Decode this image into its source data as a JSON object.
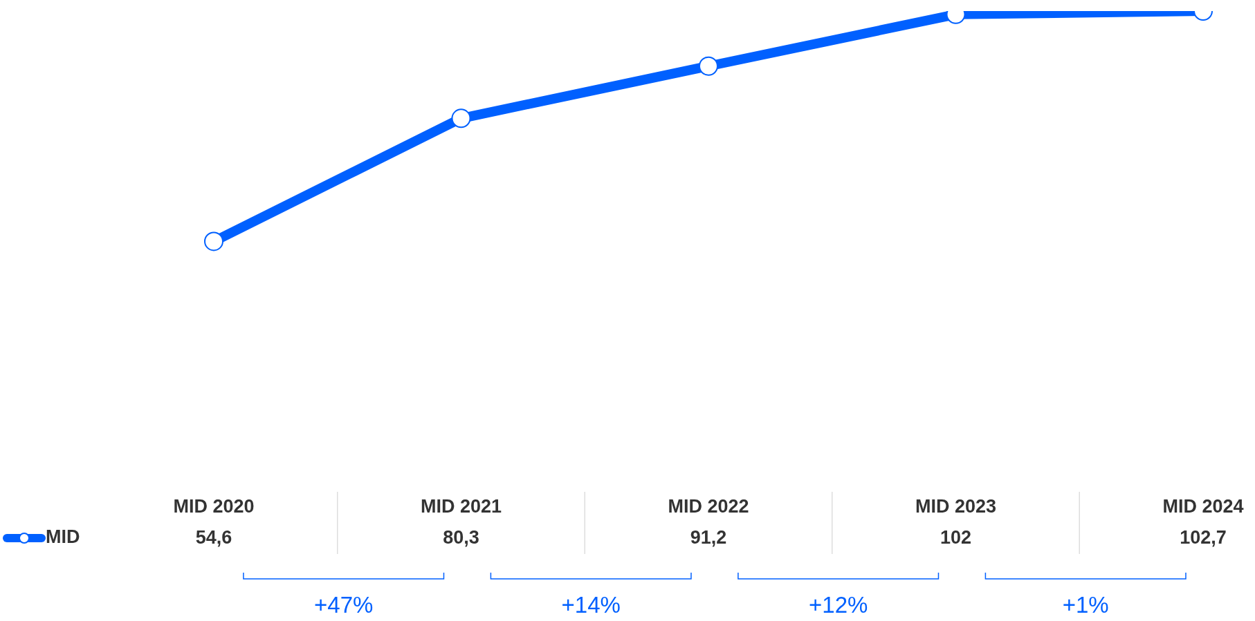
{
  "chart_data": {
    "type": "line",
    "categories": [
      "MID 2020",
      "MID 2021",
      "MID 2022",
      "MID 2023",
      "MID 2024"
    ],
    "series": [
      {
        "name": "MID",
        "color": "#0060ff",
        "values": [
          54.6,
          80.3,
          91.2,
          102,
          102.7
        ],
        "value_labels": [
          "54,6",
          "80,3",
          "91,2",
          "102",
          "102,7"
        ]
      }
    ],
    "marker": "circle",
    "legend": "bottom left",
    "grid": false,
    "annotations": [
      "+47%",
      "+14%",
      "+12%",
      "+1%"
    ]
  }
}
